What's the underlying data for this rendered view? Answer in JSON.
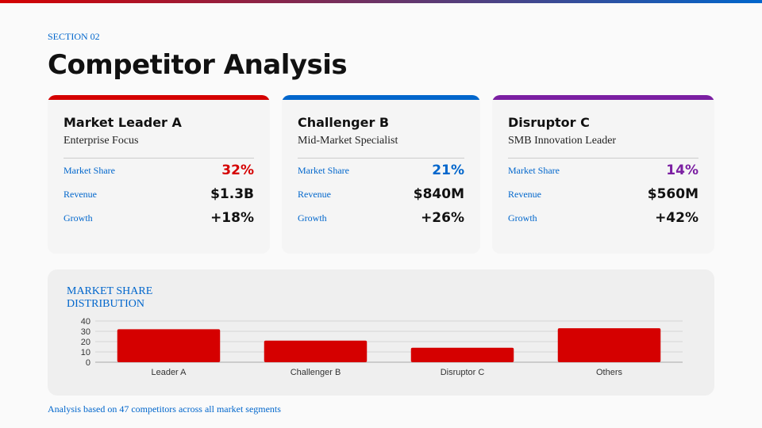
{
  "header": {
    "section": "SECTION 02",
    "title": "Competitor Analysis"
  },
  "cards": [
    {
      "name": "Market Leader A",
      "focus": "Enterprise Focus",
      "accent": "#d50000",
      "rows": [
        {
          "label": "Market Share",
          "value": "32%"
        },
        {
          "label": "Revenue",
          "value": "$1.3B"
        },
        {
          "label": "Growth",
          "value": "+18%"
        }
      ]
    },
    {
      "name": "Challenger B",
      "focus": "Mid-Market Specialist",
      "accent": "#0066cc",
      "rows": [
        {
          "label": "Market Share",
          "value": "21%"
        },
        {
          "label": "Revenue",
          "value": "$840M"
        },
        {
          "label": "Growth",
          "value": "+26%"
        }
      ]
    },
    {
      "name": "Disruptor C",
      "focus": "SMB Innovation Leader",
      "accent": "#7b1fa2",
      "rows": [
        {
          "label": "Market Share",
          "value": "14%"
        },
        {
          "label": "Revenue",
          "value": "$560M"
        },
        {
          "label": "Growth",
          "value": "+42%"
        }
      ]
    }
  ],
  "chart_title": "MARKET SHARE DISTRIBUTION",
  "chart_data": {
    "type": "bar",
    "categories": [
      "Leader A",
      "Challenger B",
      "Disruptor C",
      "Others"
    ],
    "values": [
      32,
      21,
      14,
      33
    ],
    "ylim": [
      0,
      40
    ],
    "yticks": [
      0,
      10,
      20,
      30,
      40
    ],
    "grid": true,
    "color": "#d50000"
  },
  "footer": "Analysis based on 47 competitors across all market segments"
}
